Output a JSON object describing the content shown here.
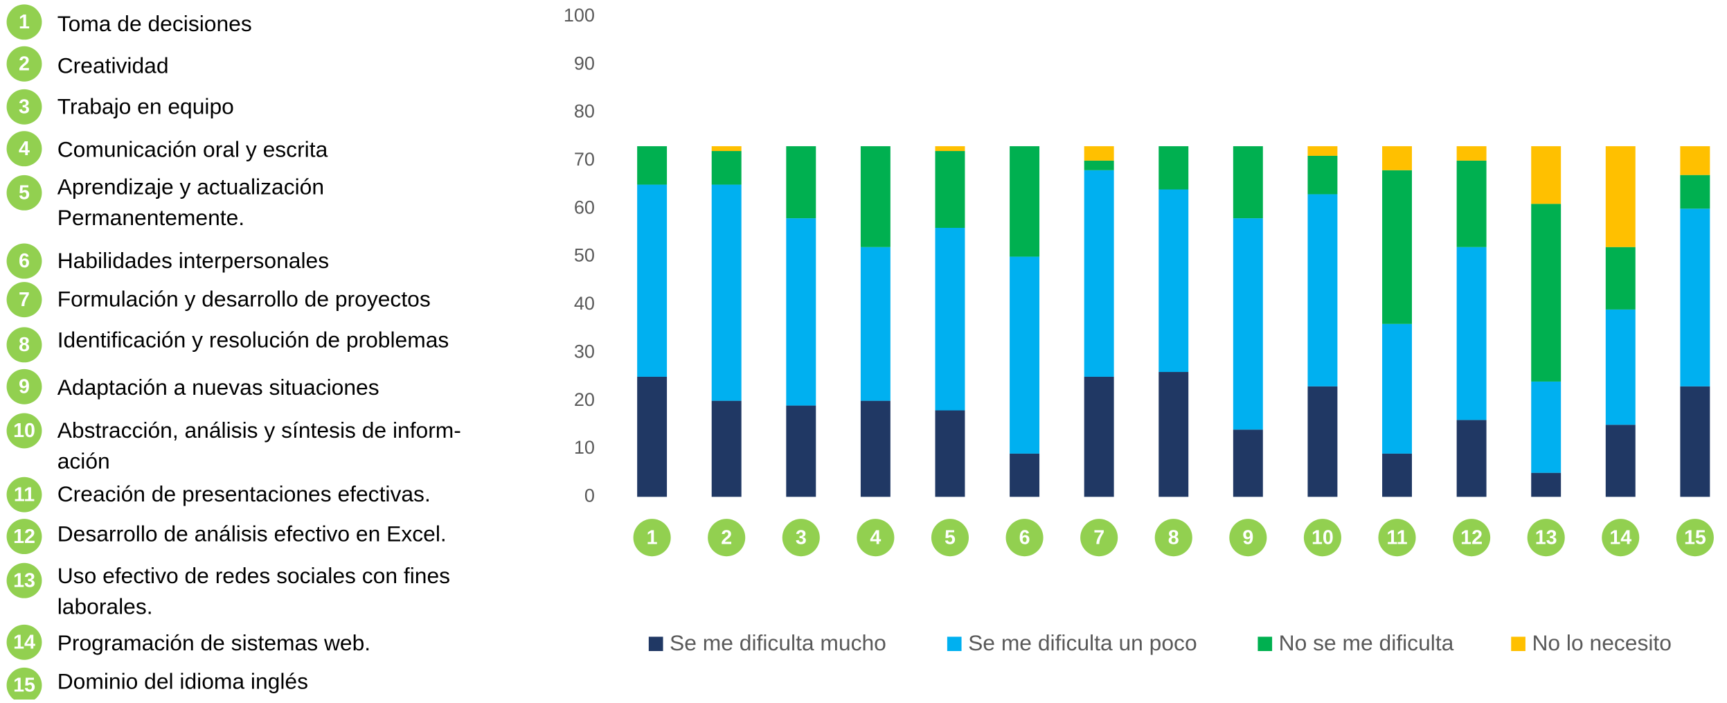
{
  "chart_data": {
    "type": "stacked_bar",
    "categories": [
      "1",
      "2",
      "3",
      "4",
      "5",
      "6",
      "7",
      "8",
      "9",
      "10",
      "11",
      "12",
      "13",
      "14",
      "15"
    ],
    "items": [
      [
        "Toma de decisiones"
      ],
      [
        "Creatividad"
      ],
      [
        "Trabajo en equipo"
      ],
      [
        "Comunicación oral y escrita"
      ],
      [
        "Aprendizaje y actualización",
        "Permanentemente."
      ],
      [
        "Habilidades interpersonales"
      ],
      [
        "Formulación y desarrollo de proyectos"
      ],
      [
        "Identificación y resolución de problemas"
      ],
      [
        "Adaptación a nuevas situaciones"
      ],
      [
        "Abstracción, análisis y síntesis de inform-",
        "ación"
      ],
      [
        "Creación de presentaciones efectivas."
      ],
      [
        "Desarrollo de análisis efectivo en Excel."
      ],
      [
        "Uso efectivo de redes sociales con fines",
        "laborales."
      ],
      [
        "Programación de sistemas web."
      ],
      [
        "Dominio del idioma inglés"
      ]
    ],
    "series": [
      {
        "name": "Se me dificulta mucho",
        "color": "#203864",
        "values": [
          25,
          20,
          19,
          20,
          18,
          9,
          25,
          26,
          14,
          23,
          9,
          16,
          5,
          15,
          23
        ]
      },
      {
        "name": "Se me dificulta un poco",
        "color": "#00b0f0",
        "values": [
          40,
          45,
          39,
          32,
          38,
          41,
          43,
          38,
          44,
          40,
          27,
          36,
          19,
          24,
          37
        ]
      },
      {
        "name": "No se me dificulta",
        "color": "#00b050",
        "values": [
          8,
          7,
          15,
          21,
          16,
          23,
          2,
          9,
          15,
          8,
          32,
          18,
          37,
          13,
          7
        ]
      },
      {
        "name": "No lo necesito",
        "color": "#ffc000",
        "values": [
          0,
          1,
          0,
          0,
          1,
          0,
          3,
          0,
          0,
          2,
          5,
          3,
          12,
          21,
          6
        ]
      }
    ],
    "ylim": [
      0,
      100
    ],
    "yticks": [
      0,
      10,
      20,
      30,
      40,
      50,
      60,
      70,
      80,
      90,
      100
    ],
    "grid": false,
    "legend": "bottom"
  }
}
